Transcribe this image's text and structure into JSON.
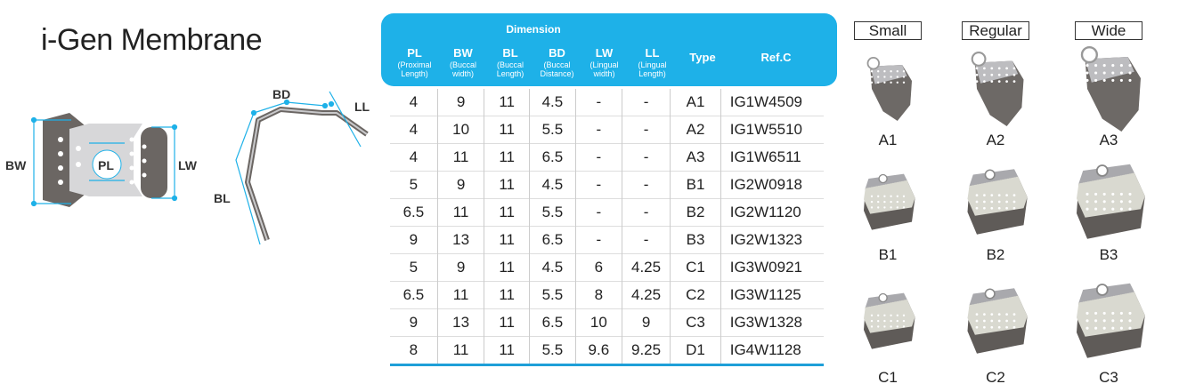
{
  "header": {
    "title": "i-Gen Membrane"
  },
  "diagram_top": {
    "labels": [
      "BW",
      "PL",
      "LW"
    ]
  },
  "diagram_side": {
    "labels": [
      "BD",
      "LL",
      "BL"
    ]
  },
  "table": {
    "group_header": "Dimension",
    "columns": [
      {
        "label": "PL",
        "sub": "(Proximal Length)"
      },
      {
        "label": "BW",
        "sub": "(Buccal width)"
      },
      {
        "label": "BL",
        "sub": "(Buccal Length)"
      },
      {
        "label": "BD",
        "sub": "(Buccal Distance)"
      },
      {
        "label": "LW",
        "sub": "(Lingual width)"
      },
      {
        "label": "LL",
        "sub": "(Lingual Length)"
      },
      {
        "label": "Type"
      },
      {
        "label": "Ref.C"
      }
    ],
    "rows": [
      [
        "4",
        "9",
        "11",
        "4.5",
        "-",
        "-",
        "A1",
        "IG1W4509"
      ],
      [
        "4",
        "10",
        "11",
        "5.5",
        "-",
        "-",
        "A2",
        "IG1W5510"
      ],
      [
        "4",
        "11",
        "11",
        "6.5",
        "-",
        "-",
        "A3",
        "IG1W6511"
      ],
      [
        "5",
        "9",
        "11",
        "4.5",
        "-",
        "-",
        "B1",
        "IG2W0918"
      ],
      [
        "6.5",
        "11",
        "11",
        "5.5",
        "-",
        "-",
        "B2",
        "IG2W1120"
      ],
      [
        "9",
        "13",
        "11",
        "6.5",
        "-",
        "-",
        "B3",
        "IG2W1323"
      ],
      [
        "5",
        "9",
        "11",
        "4.5",
        "6",
        "4.25",
        "C1",
        "IG3W0921"
      ],
      [
        "6.5",
        "11",
        "11",
        "5.5",
        "8",
        "4.25",
        "C2",
        "IG3W1125"
      ],
      [
        "9",
        "13",
        "11",
        "6.5",
        "10",
        "9",
        "C3",
        "IG3W1328"
      ],
      [
        "8",
        "11",
        "11",
        "5.5",
        "9.6",
        "9.25",
        "D1",
        "IG4W1128"
      ]
    ]
  },
  "sizes": {
    "headers": [
      "Small",
      "Regular",
      "Wide"
    ],
    "rows": [
      [
        "A1",
        "A2",
        "A3"
      ],
      [
        "B1",
        "B2",
        "B3"
      ],
      [
        "C1",
        "C2",
        "C3"
      ]
    ]
  }
}
